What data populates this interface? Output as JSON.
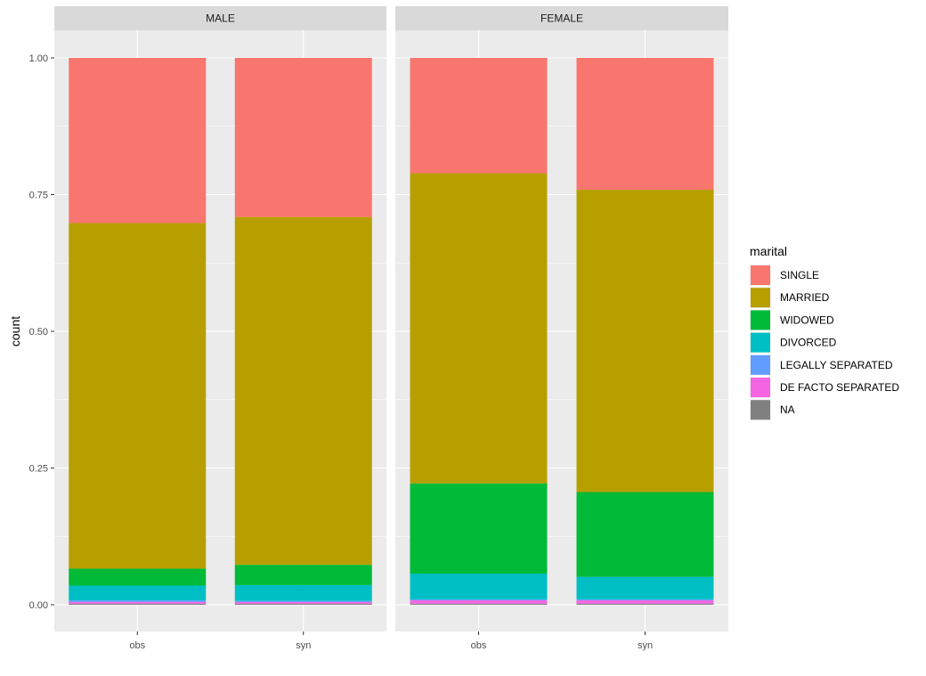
{
  "chart_data": {
    "type": "bar",
    "stacked": true,
    "ylabel": "count",
    "xlabel": "",
    "ylim": [
      0,
      1
    ],
    "y_ticks": [
      "0.00",
      "0.25",
      "0.50",
      "0.75",
      "1.00"
    ],
    "categories": [
      "obs",
      "syn"
    ],
    "legend": {
      "title": "marital",
      "position": "right"
    },
    "series_colors": {
      "SINGLE": "#F8766D",
      "MARRIED": "#B79F00",
      "WIDOWED": "#00BA38",
      "DIVORCED": "#00BFC4",
      "LEGALLY SEPARATED": "#619CFF",
      "DE FACTO SEPARATED": "#F564E3",
      "NA": "#808080"
    },
    "stack_order": [
      "NA",
      "DE FACTO SEPARATED",
      "LEGALLY SEPARATED",
      "DIVORCED",
      "WIDOWED",
      "MARRIED",
      "SINGLE"
    ],
    "legend_order": [
      "SINGLE",
      "MARRIED",
      "WIDOWED",
      "DIVORCED",
      "LEGALLY SEPARATED",
      "DE FACTO SEPARATED",
      "NA"
    ],
    "panels": [
      {
        "label": "MALE",
        "bars": [
          {
            "category": "obs",
            "values": {
              "SINGLE": 0.302,
              "MARRIED": 0.632,
              "WIDOWED": 0.031,
              "DIVORCED": 0.027,
              "LEGALLY SEPARATED": 0.003,
              "DE FACTO SEPARATED": 0.003,
              "NA": 0.002
            }
          },
          {
            "category": "syn",
            "values": {
              "SINGLE": 0.291,
              "MARRIED": 0.636,
              "WIDOWED": 0.037,
              "DIVORCED": 0.029,
              "LEGALLY SEPARATED": 0.002,
              "DE FACTO SEPARATED": 0.003,
              "NA": 0.002
            }
          }
        ]
      },
      {
        "label": "FEMALE",
        "bars": [
          {
            "category": "obs",
            "values": {
              "SINGLE": 0.211,
              "MARRIED": 0.567,
              "WIDOWED": 0.165,
              "DIVORCED": 0.047,
              "LEGALLY SEPARATED": 0.002,
              "DE FACTO SEPARATED": 0.006,
              "NA": 0.002
            }
          },
          {
            "category": "syn",
            "values": {
              "SINGLE": 0.241,
              "MARRIED": 0.553,
              "WIDOWED": 0.155,
              "DIVORCED": 0.041,
              "LEGALLY SEPARATED": 0.002,
              "DE FACTO SEPARATED": 0.006,
              "NA": 0.002
            }
          }
        ]
      }
    ]
  }
}
